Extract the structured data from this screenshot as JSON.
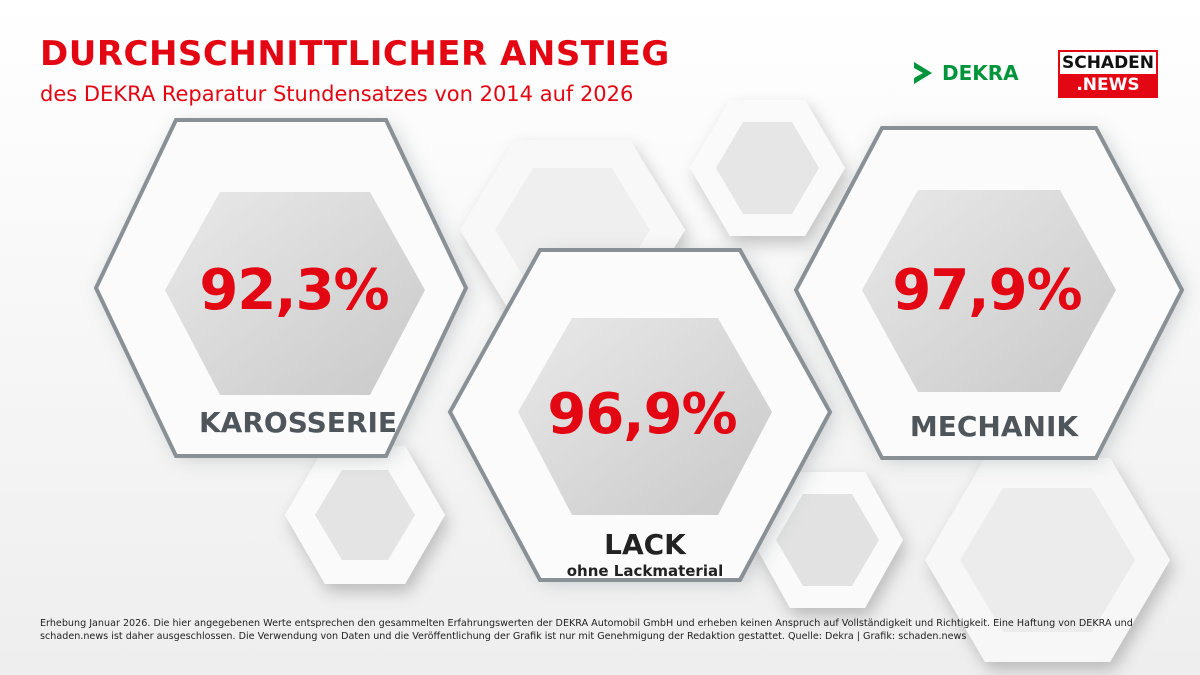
{
  "header": {
    "title": "DURCHSCHNITTLICHER ANSTIEG",
    "subtitle": "des DEKRA Reparatur Stundensatzes von 2014 auf 2026"
  },
  "logos": {
    "dekra": "DEKRA",
    "schaden_top": "SCHADEN",
    "schaden_bottom": ".NEWS"
  },
  "items": [
    {
      "value": "92,3%",
      "label": "KAROSSERIE"
    },
    {
      "value": "96,9%",
      "label": "LACK",
      "sublabel": "ohne Lackmaterial"
    },
    {
      "value": "97,9%",
      "label": "MECHANIK"
    }
  ],
  "footnote": "Erhebung Januar 2026. Die hier angegebenen Werte entsprechen den gesammelten Erfahrungswerten der DEKRA Automobil GmbH und erheben keinen Anspruch auf Vollständigkeit und Richtigkeit. Eine Haftung von DEKRA und schaden.news ist daher ausgeschlossen. Die Verwendung von Daten und die Veröffentlichung der Grafik ist nur mit Genehmigung der Redaktion gestattet. Quelle: Dekra | Grafik: schaden.news",
  "colors": {
    "accent": "#e30613",
    "label_gray": "#4e555b",
    "dekra_green": "#00953a"
  }
}
